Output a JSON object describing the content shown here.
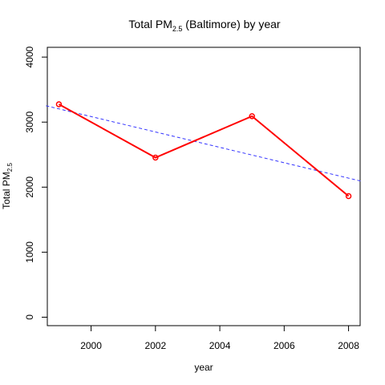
{
  "chart_data": {
    "type": "line",
    "title": {
      "main": "Total PM",
      "sub": "2.5",
      "suffix": " (Baltimore) by year"
    },
    "xlabel": "year",
    "ylabel": {
      "main": "Total PM",
      "sub": "2.5"
    },
    "x": [
      1999,
      2002,
      2005,
      2008
    ],
    "series": [
      {
        "values": [
          3274,
          2454,
          3091,
          1862
        ],
        "color": "#ff0000"
      }
    ],
    "trend_line": {
      "x": [
        1998.6,
        2008.4
      ],
      "y": [
        3251,
        2091
      ],
      "color": "#3333ff",
      "style": "dashed"
    },
    "xlim": [
      1998.64,
      2008.36
    ],
    "ylim": [
      -130,
      4150
    ],
    "xticks": [
      2000,
      2002,
      2004,
      2006,
      2008
    ],
    "yticks": [
      0,
      1000,
      2000,
      3000,
      4000
    ],
    "grid": false
  }
}
